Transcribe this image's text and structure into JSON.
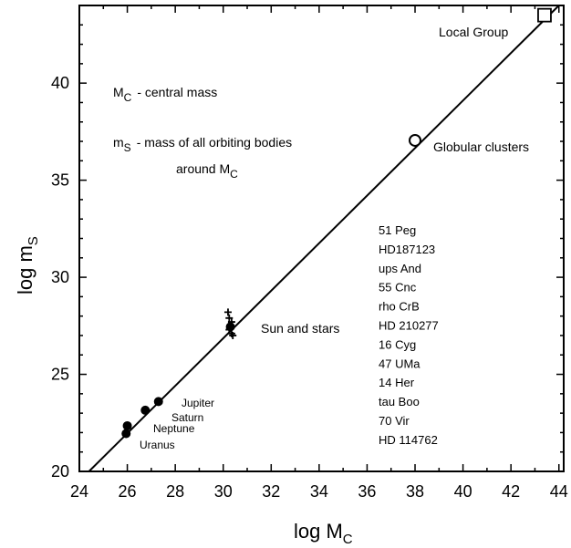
{
  "chart_data": {
    "type": "scatter",
    "xlabel": "log M",
    "xlabel_sub": "C",
    "ylabel": "log m",
    "ylabel_sub": "S",
    "xlim": [
      24,
      44.2
    ],
    "ylim": [
      20,
      44
    ],
    "xticks": [
      24,
      26,
      28,
      30,
      32,
      34,
      36,
      38,
      40,
      42,
      44
    ],
    "yticks": [
      20,
      25,
      30,
      35,
      40
    ],
    "grid": false,
    "fit_line": [
      [
        24.4,
        20
      ],
      [
        44,
        44
      ]
    ],
    "planets": [
      {
        "name": "Jupiter",
        "x": 27.3,
        "y": 23.6
      },
      {
        "name": "Saturn",
        "x": 26.75,
        "y": 23.15
      },
      {
        "name": "Neptune",
        "x": 26.0,
        "y": 22.35
      },
      {
        "name": "Uranus",
        "x": 25.95,
        "y": 21.95
      }
    ],
    "sun_point": {
      "x": 30.3,
      "y": 27.45
    },
    "stars": [
      {
        "x": 30.2,
        "y": 28.2
      },
      {
        "x": 30.25,
        "y": 27.9
      },
      {
        "x": 30.35,
        "y": 27.7
      },
      {
        "x": 30.3,
        "y": 27.5
      },
      {
        "x": 30.25,
        "y": 27.3
      },
      {
        "x": 30.35,
        "y": 27.1
      },
      {
        "x": 30.4,
        "y": 27.0
      }
    ],
    "globular": {
      "x": 38.0,
      "y": 37.05
    },
    "local_group": {
      "x": 43.4,
      "y": 43.5
    },
    "labels": {
      "local_group": "Local Group",
      "globular": "Globular clusters",
      "sun_and_stars": "Sun and stars"
    },
    "legend_text": {
      "mc_symbol": "M",
      "mc_sub": "C",
      "mc_desc": "- central mass",
      "ms_symbol": "m",
      "ms_sub": "S",
      "ms_desc": "- mass of all orbiting bodies",
      "around": "around M",
      "around_sub": "C"
    },
    "star_list": [
      "51 Peg",
      "HD187123",
      "ups And",
      "55 Cnc",
      "rho CrB",
      "HD 210277",
      "16 Cyg",
      "47 UMa",
      "14 Her",
      "tau Boo",
      "70 Vir",
      "HD 114762"
    ]
  }
}
